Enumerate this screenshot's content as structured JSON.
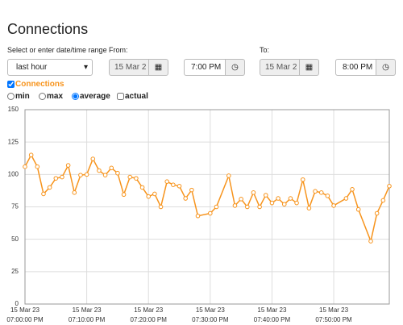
{
  "header": {
    "title": "Connections"
  },
  "controls": {
    "range_label": "Select or enter date/time range",
    "range_value": "last hour",
    "from_label": "From:",
    "from_date": "15 Mar 2",
    "from_time": "7:00 PM",
    "to_label": "To:",
    "to_date": "15 Mar 2",
    "to_time": "8:00 PM",
    "stats": [
      {
        "label": "min",
        "checked": false
      },
      {
        "label": "max",
        "checked": false
      },
      {
        "label": "average",
        "checked": true
      }
    ],
    "actual": {
      "label": "actual",
      "checked": false
    }
  },
  "chart_data": {
    "type": "line",
    "x": [
      0,
      1,
      2,
      3,
      4,
      5,
      6,
      7,
      8,
      9,
      10,
      11,
      12,
      13,
      14,
      15,
      16,
      17,
      18,
      19,
      20,
      21,
      22,
      23,
      24,
      25,
      26,
      27,
      28,
      30,
      31,
      33,
      34,
      35,
      36,
      37,
      38,
      39,
      40,
      41,
      42,
      43,
      44,
      45,
      46,
      47,
      48,
      49,
      50,
      52,
      53,
      54,
      56,
      57,
      58,
      59
    ],
    "series": [
      {
        "name": "Connections",
        "color": "#f7941d",
        "values": [
          106,
          115,
          106,
          85,
          90,
          97,
          98,
          107,
          86,
          99.5,
          100,
          112,
          103,
          99.5,
          105,
          101,
          84.5,
          98,
          97,
          90,
          83,
          85,
          75,
          94.5,
          92,
          91,
          81.5,
          88,
          68,
          70,
          75,
          99,
          76,
          81,
          75,
          86,
          75,
          84,
          78,
          81.5,
          77,
          81.5,
          78,
          96,
          74,
          87,
          86,
          83.5,
          76,
          81.5,
          88.5,
          73,
          48.5,
          70,
          80,
          91
        ]
      }
    ],
    "xlim": [
      0,
      59
    ],
    "xticks": [
      {
        "value": 0,
        "label": "15 Mar 23\n07:00:00 PM"
      },
      {
        "value": 10,
        "label": "15 Mar 23\n07:10:00 PM"
      },
      {
        "value": 20,
        "label": "15 Mar 23\n07:20:00 PM"
      },
      {
        "value": 30,
        "label": "15 Mar 23\n07:30:00 PM"
      },
      {
        "value": 40,
        "label": "15 Mar 23\n07:40:00 PM"
      },
      {
        "value": 50,
        "label": "15 Mar 23\n07:50:00 PM"
      }
    ],
    "ylim": [
      0,
      150
    ],
    "yticks": [
      0,
      25,
      50,
      75,
      100,
      125,
      150
    ],
    "grid": true
  }
}
